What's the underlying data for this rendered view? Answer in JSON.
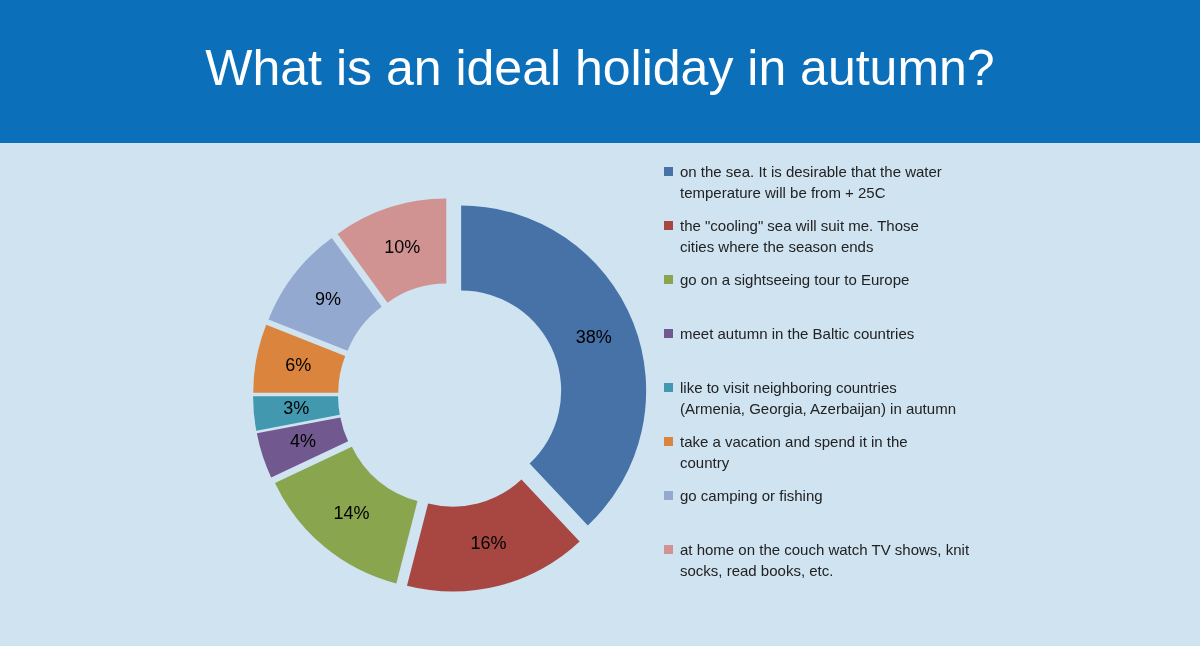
{
  "chart_data": {
    "type": "donut",
    "title": "What is an ideal holiday in autumn?",
    "categories": [
      "on the sea. It is desirable that the water temperature will be from + 25C",
      "the \"cooling\" sea will suit me. Those cities where the season ends",
      "go on a sightseeing tour to Europe",
      "meet autumn in the Baltic countries",
      "like to visit neighboring countries (Armenia, Georgia, Azerbaijan) in autumn",
      "take a vacation and spend it in the country",
      "go camping or fishing",
      "at home on the couch watch TV shows, knit socks, read books, etc."
    ],
    "values": [
      38,
      16,
      14,
      4,
      3,
      6,
      9,
      10
    ],
    "colors": [
      "#4672a8",
      "#a84642",
      "#89a54e",
      "#71588f",
      "#4198af",
      "#db843d",
      "#93a9cf",
      "#d19392"
    ],
    "value_labels": [
      "38%",
      "16%",
      "14%",
      "4%",
      "3%",
      "6%",
      "9%",
      "10%"
    ],
    "legend": "right"
  }
}
